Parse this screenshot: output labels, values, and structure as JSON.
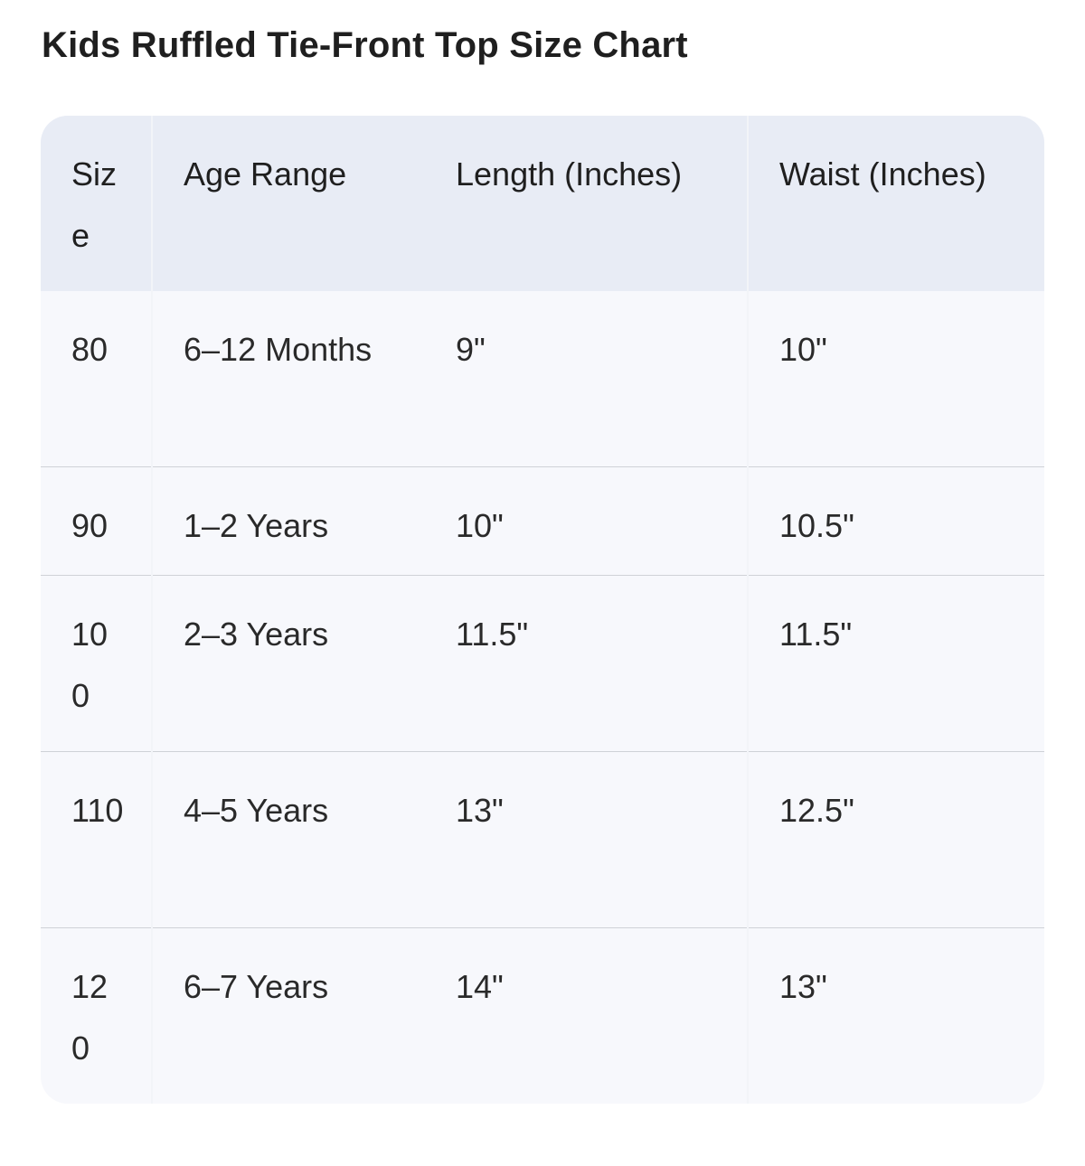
{
  "header": {
    "title": "Kids Ruffled Tie-Front Top Size Chart"
  },
  "table": {
    "columns": [
      "Size",
      "Age Range",
      "Length (Inches)",
      "Waist (Inches)"
    ],
    "rows": [
      [
        "80",
        "6–12 Months",
        "9\"",
        "10\""
      ],
      [
        "90",
        "1–2 Years",
        "10\"",
        "10.5\""
      ],
      [
        "100",
        "2–3 Years",
        "11.5\"",
        "11.5\""
      ],
      [
        "110",
        "4–5 Years",
        "13\"",
        "12.5\""
      ],
      [
        "120",
        "6–7 Years",
        "14\"",
        "13\""
      ]
    ]
  }
}
